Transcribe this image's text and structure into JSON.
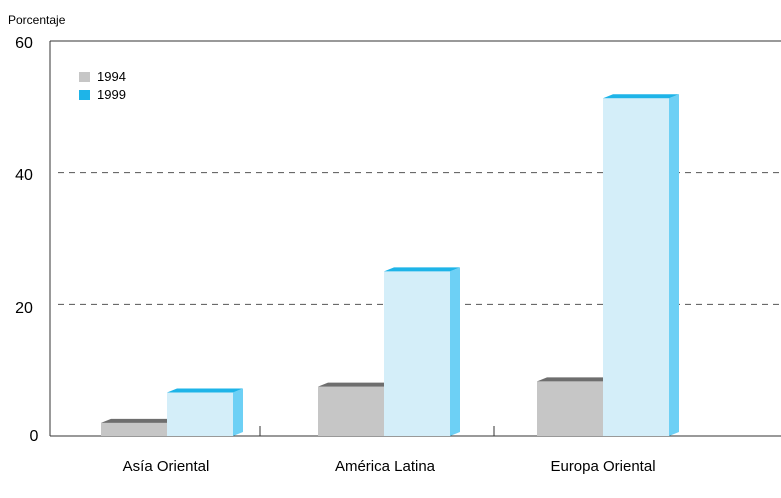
{
  "chart_data": {
    "type": "bar",
    "ylabel": "Porcentaje",
    "ylim": [
      0,
      60
    ],
    "yticks": [
      "0",
      "20",
      "40",
      "60"
    ],
    "grid": "horizontal dashed at 20 and 40",
    "legend_position": "top-left",
    "categories": [
      "Asía Oriental",
      "América Latina",
      "Europa Oriental"
    ],
    "series": [
      {
        "name": "1994",
        "values": [
          2,
          7.5,
          8.3
        ],
        "color": "#c6c6c6",
        "top_color": "#6e6e6e"
      },
      {
        "name": "1999",
        "values": [
          6.6,
          25,
          51.3
        ],
        "color": "#d4eef9",
        "top_color": "#1eb4e8",
        "side_color": "#6dd0f5"
      }
    ]
  }
}
